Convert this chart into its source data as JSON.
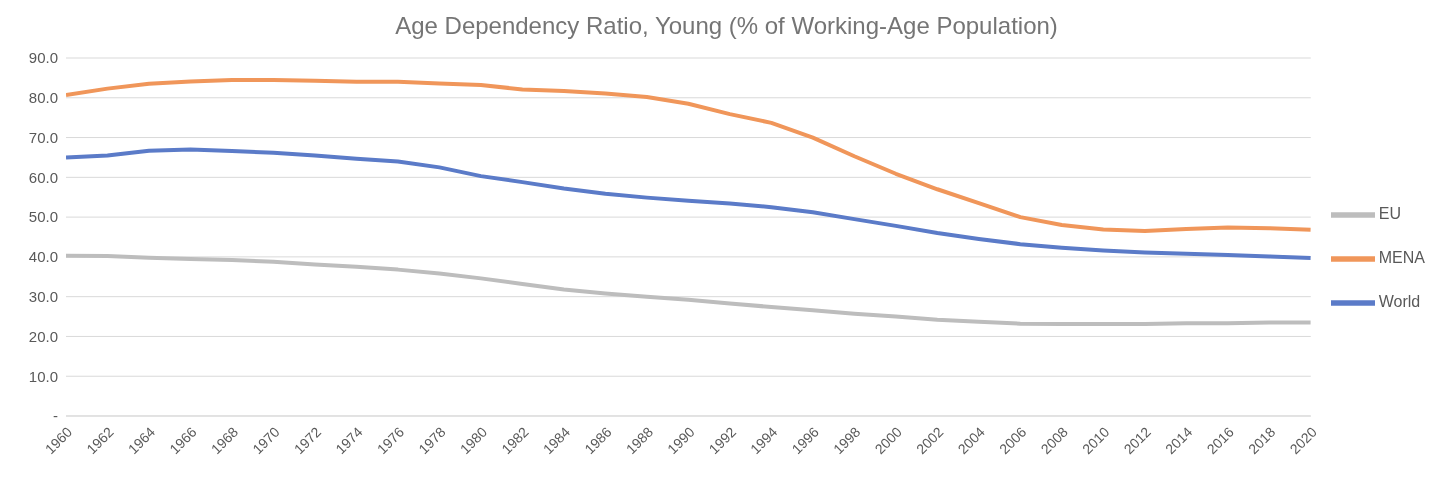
{
  "chart_data": {
    "type": "line",
    "title": "Age Dependency Ratio, Young (% of Working-Age Population)",
    "x": [
      1960,
      1962,
      1964,
      1966,
      1968,
      1970,
      1972,
      1974,
      1976,
      1978,
      1980,
      1982,
      1984,
      1986,
      1988,
      1990,
      1992,
      1994,
      1996,
      1998,
      2000,
      2002,
      2004,
      2006,
      2008,
      2010,
      2012,
      2014,
      2016,
      2018,
      2020
    ],
    "series": [
      {
        "name": "World",
        "color": "#5b7bc8",
        "values": [
          65.0,
          65.5,
          66.7,
          67.0,
          66.6,
          66.2,
          65.5,
          64.7,
          64.0,
          62.5,
          60.3,
          58.8,
          57.2,
          55.9,
          54.9,
          54.1,
          53.4,
          52.5,
          51.2,
          49.5,
          47.8,
          46.0,
          44.5,
          43.2,
          42.3,
          41.6,
          41.1,
          40.8,
          40.5,
          40.1,
          39.7
        ]
      },
      {
        "name": "MENA",
        "color": "#f0965a",
        "values": [
          80.7,
          82.3,
          83.5,
          84.1,
          84.5,
          84.5,
          84.3,
          84.0,
          84.0,
          83.6,
          83.2,
          82.1,
          81.7,
          81.1,
          80.2,
          78.5,
          75.9,
          73.7,
          70.0,
          65.3,
          60.9,
          57.0,
          53.5,
          50.0,
          48.0,
          46.9,
          46.5,
          47.0,
          47.4,
          47.2,
          46.8
        ]
      },
      {
        "name": "EU",
        "color": "#bdbdbd",
        "values": [
          40.3,
          40.2,
          39.8,
          39.5,
          39.2,
          38.8,
          38.1,
          37.5,
          36.8,
          35.8,
          34.6,
          33.2,
          31.8,
          30.8,
          30.0,
          29.2,
          28.3,
          27.4,
          26.6,
          25.7,
          25.0,
          24.2,
          23.7,
          23.2,
          23.1,
          23.1,
          23.1,
          23.3,
          23.3,
          23.5,
          23.5
        ]
      }
    ],
    "xlim": [
      1960,
      2020
    ],
    "xticks": [
      1960,
      1962,
      1964,
      1966,
      1968,
      1970,
      1972,
      1974,
      1976,
      1978,
      1980,
      1982,
      1984,
      1986,
      1988,
      1990,
      1992,
      1994,
      1996,
      1998,
      2000,
      2002,
      2004,
      2006,
      2008,
      2010,
      2012,
      2014,
      2016,
      2018,
      2020
    ],
    "ylim": [
      0,
      90
    ],
    "yticks": [
      {
        "value": 0,
        "label": "-"
      },
      {
        "value": 10,
        "label": "10.0"
      },
      {
        "value": 20,
        "label": "20.0"
      },
      {
        "value": 30,
        "label": "30.0"
      },
      {
        "value": 40,
        "label": "40.0"
      },
      {
        "value": 50,
        "label": "50.0"
      },
      {
        "value": 60,
        "label": "60.0"
      },
      {
        "value": 70,
        "label": "70.0"
      },
      {
        "value": 80,
        "label": "80.0"
      },
      {
        "value": 90,
        "label": "90.0"
      }
    ],
    "grid": "y",
    "legend": "right",
    "marker": "none",
    "line_style": "solid"
  }
}
